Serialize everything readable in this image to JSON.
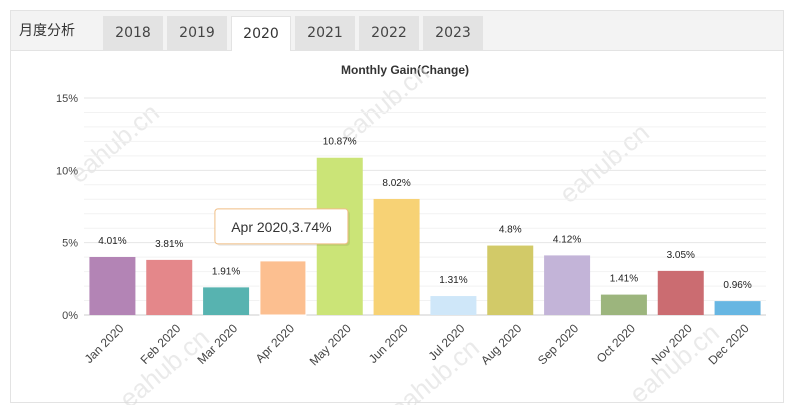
{
  "tabs": {
    "label": "月度分析",
    "years": [
      "2018",
      "2019",
      "2020",
      "2021",
      "2022",
      "2023"
    ],
    "active": "2020"
  },
  "watermark": "eahub.cn",
  "chart_data": {
    "type": "bar",
    "title": "Monthly Gain(Change)",
    "xlabel": "",
    "ylabel": "",
    "ylim": [
      0,
      15
    ],
    "yticks": [
      "0%",
      "5%",
      "10%",
      "15%"
    ],
    "grid": true,
    "legend": "none",
    "categories": [
      "Jan 2020",
      "Feb 2020",
      "Mar 2020",
      "Apr 2020",
      "May 2020",
      "Jun 2020",
      "Jul 2020",
      "Aug 2020",
      "Sep 2020",
      "Oct 2020",
      "Nov 2020",
      "Dec 2020"
    ],
    "values": [
      4.01,
      3.81,
      1.91,
      3.74,
      10.87,
      8.02,
      1.31,
      4.8,
      4.12,
      1.41,
      3.05,
      0.96
    ],
    "value_labels": [
      "4.01%",
      "3.81%",
      "1.91%",
      "",
      "10.87%",
      "8.02%",
      "1.31%",
      "4.8%",
      "4.12%",
      "1.41%",
      "3.05%",
      "0.96%"
    ],
    "colors": [
      "#b384b5",
      "#e4878a",
      "#57b3b0",
      "#fcbf90",
      "#cbe477",
      "#f7d275",
      "#cfe7f9",
      "#d2ca68",
      "#c3b4d8",
      "#9cb57d",
      "#cb6c71",
      "#67b6e2"
    ],
    "tooltip": {
      "text": "Apr 2020,3.74%",
      "category": "Apr 2020",
      "border_color": "#f0be85"
    }
  }
}
